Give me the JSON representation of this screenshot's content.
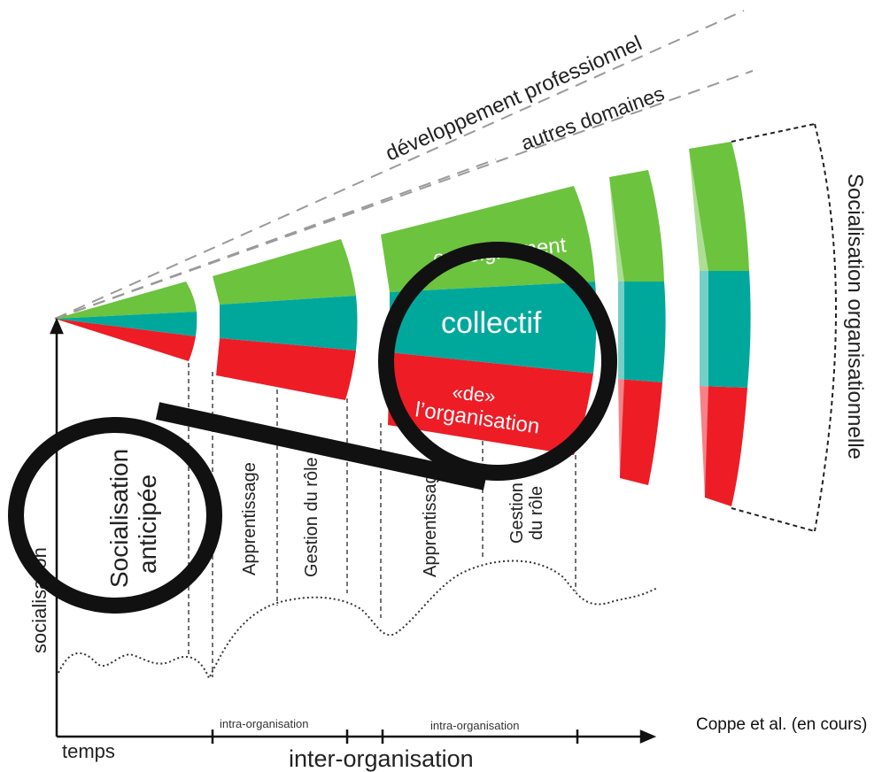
{
  "dashed_lines": {
    "professional_development": "développement professionnel",
    "other_domains": "autres domaines"
  },
  "funnel_layers": {
    "top": "enseignement",
    "middle": "collectif",
    "bottom_line1": "«de»",
    "bottom_line2": "l’organisation"
  },
  "right_label": "Socialisation organisationnelle",
  "phases": {
    "anticipatory": [
      "Socialisation",
      "anticipée"
    ],
    "learning_1": "Apprentissage",
    "role_mgmt_1": "Gestion du rôle",
    "learning_2": "Apprentissage",
    "role_mgmt_2": [
      "Gestion",
      "du rôle"
    ]
  },
  "axes": {
    "y_label": "socialisation",
    "x_label": "temps",
    "inter_label": "inter-organisation",
    "intra_label_1": "intra-organisation",
    "intra_label_2": "intra-organisation"
  },
  "credit": "Coppe et al. (en cours)",
  "colors": {
    "green": "#6cc33e",
    "teal": "#00a89c",
    "red": "#ee1c25",
    "annotation": "#111111"
  }
}
